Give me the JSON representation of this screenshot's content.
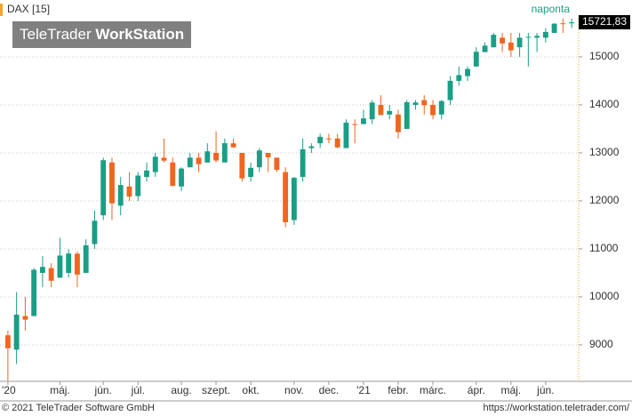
{
  "chart_data": {
    "type": "candlestick",
    "logo_light": "TeleTrader",
    "logo_bold": "WorkStation",
    "period": "naponta",
    "footer_left": "© 2021 TeleTrader Software GmbH",
    "footer_right": "https://workstation.teletrader.com/",
    "last_price": {
      "value": 15721.83,
      "label": "15721,83"
    },
    "up_color": "#1a9e85",
    "down_color": "#f0651f",
    "grid": true,
    "ylim": [
      8259,
      15852
    ],
    "yticks": [
      9000,
      10000,
      11000,
      12000,
      13000,
      14000,
      15000
    ],
    "categories": [
      "'20",
      null,
      null,
      null,
      null,
      null,
      "máj.",
      null,
      null,
      null,
      null,
      "jún.",
      null,
      null,
      null,
      "júl.",
      null,
      null,
      null,
      null,
      "aug.",
      null,
      null,
      null,
      "szept.",
      null,
      null,
      null,
      "okt.",
      null,
      null,
      null,
      null,
      "nov.",
      null,
      null,
      null,
      "dec.",
      null,
      null,
      null,
      "'21",
      null,
      null,
      null,
      "febr.",
      null,
      null,
      null,
      "márc.",
      null,
      null,
      null,
      null,
      "ápr.",
      null,
      null,
      null,
      "máj.",
      null,
      null,
      null,
      "jún.",
      null,
      null,
      null
    ],
    "series": [
      {
        "name": "DAX [15]",
        "open": [
          9200,
          8900,
          9600,
          9600,
          10500,
          10600,
          10400,
          10500,
          10900,
          10500,
          11100,
          11700,
          12800,
          11900,
          12300,
          12100,
          12500,
          12600,
          12900,
          12800,
          12300,
          12700,
          12900,
          12800,
          13000,
          12800,
          13200,
          13000,
          12500,
          12700,
          13000,
          12900,
          12600,
          11600,
          12500,
          13100,
          13200,
          13300,
          13300,
          13100,
          13600,
          13600,
          13700,
          14000,
          13800,
          13800,
          13500,
          14000,
          14100,
          14000,
          13800,
          14100,
          14500,
          14600,
          14800,
          15100,
          15200,
          15400,
          15300,
          15200,
          15400,
          15400,
          15400,
          15500,
          15700,
          15700
        ],
        "high": [
          9300,
          10100,
          10000,
          10600,
          10850,
          10700,
          11230,
          10990,
          10950,
          11200,
          11800,
          12900,
          12900,
          12500,
          12600,
          12600,
          12800,
          13000,
          13300,
          12900,
          12700,
          13000,
          13000,
          13200,
          13450,
          13300,
          13300,
          13000,
          12800,
          13100,
          13000,
          12900,
          12700,
          12500,
          13300,
          13200,
          13400,
          13400,
          13400,
          13700,
          13700,
          13900,
          14100,
          14200,
          14000,
          13900,
          14100,
          14100,
          14200,
          14100,
          14100,
          14600,
          14800,
          14800,
          15200,
          15300,
          15500,
          15500,
          15500,
          15500,
          15500,
          15500,
          15600,
          15700,
          15800,
          15800
        ],
        "low": [
          8256,
          8600,
          9300,
          9600,
          10200,
          10200,
          10400,
          10400,
          10200,
          10500,
          11000,
          11600,
          11600,
          11700,
          12000,
          12000,
          12400,
          12500,
          12800,
          12300,
          12200,
          12700,
          12600,
          12800,
          12800,
          12800,
          13100,
          12400,
          12400,
          12600,
          12600,
          12600,
          11450,
          11500,
          12400,
          13000,
          13100,
          13200,
          13100,
          13100,
          13200,
          13600,
          13600,
          13800,
          13700,
          13300,
          13500,
          13900,
          13800,
          13700,
          13700,
          14000,
          14400,
          14500,
          14800,
          15100,
          15200,
          15100,
          15000,
          15000,
          14800,
          15100,
          15300,
          15500,
          15500,
          15600
        ],
        "close": [
          8930,
          9630,
          9525,
          10565,
          10625,
          10336,
          10861,
          10904,
          10465,
          11074,
          11586,
          12848,
          11949,
          12331,
          12089,
          12528,
          12633,
          12920,
          12838,
          12313,
          12674,
          12901,
          12765,
          13033,
          12842,
          13202,
          13116,
          12469,
          12689,
          13051,
          12909,
          12646,
          11556,
          12480,
          13077,
          13137,
          13335,
          13298,
          13114,
          13631,
          13587,
          13719,
          14049,
          13788,
          13873,
          13433,
          14056,
          14050,
          13993,
          13786,
          14080,
          14502,
          14621,
          14748,
          15107,
          15234,
          15460,
          15280,
          15136,
          15400,
          15417,
          15438,
          15520,
          15693,
          15693,
          15721.83
        ]
      }
    ]
  }
}
